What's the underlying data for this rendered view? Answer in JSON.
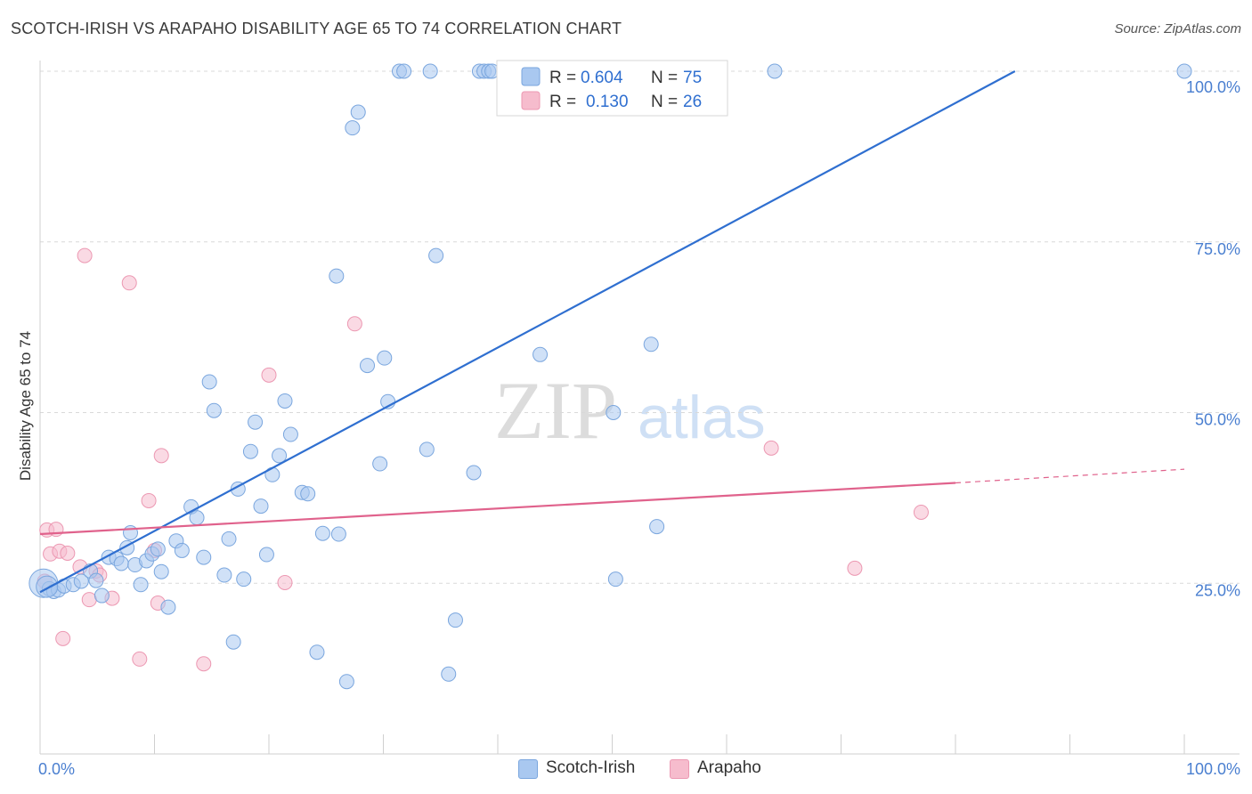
{
  "header": {
    "title": "SCOTCH-IRISH VS ARAPAHO DISABILITY AGE 65 TO 74 CORRELATION CHART",
    "source": "Source: ZipAtlas.com"
  },
  "watermark": {
    "zip": "ZIP",
    "atlas": "atlas"
  },
  "legend_top": [
    {
      "r_label": "R =",
      "r_value": "0.604",
      "n_label": "N =",
      "n_value": "75"
    },
    {
      "r_label": "R =",
      "r_value": "0.130",
      "n_label": "N =",
      "n_value": "26"
    }
  ],
  "legend_bottom": [
    {
      "label": "Scotch-Irish"
    },
    {
      "label": "Arapaho"
    }
  ],
  "colors": {
    "blue_fill": "#a9c8f0",
    "blue_stroke": "#7aa6de",
    "blue_line": "#2f6fd0",
    "pink_fill": "#f6bccd",
    "pink_stroke": "#ec98b2",
    "pink_line": "#e0628c",
    "axis_text": "#4a7fd0",
    "grid": "#d9d9d9"
  },
  "chart_data": {
    "type": "scatter",
    "title": "SCOTCH-IRISH VS ARAPAHO DISABILITY AGE 65 TO 74 CORRELATION CHART",
    "xlabel": "",
    "ylabel": "Disability Age 65 to 74",
    "xlim": [
      0,
      100
    ],
    "ylim": [
      0,
      100
    ],
    "x_tick_labels": [
      "0.0%",
      "100.0%"
    ],
    "y_tick_labels": [
      "25.0%",
      "50.0%",
      "75.0%",
      "100.0%"
    ],
    "y_ticks": [
      25,
      50,
      75,
      100
    ],
    "series": [
      {
        "name": "Scotch-Irish",
        "R": 0.604,
        "N": 75,
        "trend": {
          "x": [
            0,
            85.2
          ],
          "y": [
            23.7,
            100
          ]
        },
        "points": [
          [
            0.3,
            25.0
          ],
          [
            0.8,
            24.2
          ],
          [
            1.2,
            23.8
          ],
          [
            1.6,
            24.0
          ],
          [
            2.1,
            24.6
          ],
          [
            2.9,
            24.8
          ],
          [
            3.6,
            25.3
          ],
          [
            4.4,
            26.8
          ],
          [
            4.9,
            25.4
          ],
          [
            5.4,
            23.2
          ],
          [
            6.0,
            28.8
          ],
          [
            6.7,
            28.6
          ],
          [
            7.1,
            27.9
          ],
          [
            7.6,
            30.2
          ],
          [
            7.9,
            32.4
          ],
          [
            8.3,
            27.7
          ],
          [
            8.8,
            24.8
          ],
          [
            9.3,
            28.3
          ],
          [
            9.8,
            29.3
          ],
          [
            10.3,
            30.0
          ],
          [
            10.6,
            26.7
          ],
          [
            11.2,
            21.5
          ],
          [
            11.9,
            31.2
          ],
          [
            12.4,
            29.8
          ],
          [
            13.2,
            36.2
          ],
          [
            13.7,
            34.6
          ],
          [
            14.3,
            28.8
          ],
          [
            14.8,
            54.5
          ],
          [
            15.2,
            50.3
          ],
          [
            16.1,
            26.2
          ],
          [
            16.5,
            31.5
          ],
          [
            16.9,
            16.4
          ],
          [
            17.3,
            38.8
          ],
          [
            17.8,
            25.6
          ],
          [
            18.4,
            44.3
          ],
          [
            18.8,
            48.6
          ],
          [
            19.3,
            36.3
          ],
          [
            19.8,
            29.2
          ],
          [
            20.3,
            40.9
          ],
          [
            20.9,
            43.7
          ],
          [
            21.4,
            51.7
          ],
          [
            21.9,
            46.8
          ],
          [
            22.9,
            38.3
          ],
          [
            23.4,
            38.1
          ],
          [
            24.2,
            14.9
          ],
          [
            24.7,
            32.3
          ],
          [
            25.9,
            70.0
          ],
          [
            26.1,
            32.2
          ],
          [
            26.8,
            10.6
          ],
          [
            27.3,
            91.7
          ],
          [
            27.8,
            94.0
          ],
          [
            28.6,
            56.9
          ],
          [
            29.7,
            42.5
          ],
          [
            30.1,
            58.0
          ],
          [
            30.4,
            51.6
          ],
          [
            31.4,
            100.0
          ],
          [
            31.8,
            100.0
          ],
          [
            33.8,
            44.6
          ],
          [
            34.1,
            100.0
          ],
          [
            34.6,
            73.0
          ],
          [
            35.7,
            11.7
          ],
          [
            36.3,
            19.6
          ],
          [
            37.9,
            41.2
          ],
          [
            38.4,
            100.0
          ],
          [
            38.8,
            100.0
          ],
          [
            39.2,
            100.0
          ],
          [
            39.5,
            100.0
          ],
          [
            43.7,
            58.5
          ],
          [
            50.1,
            50.0
          ],
          [
            50.3,
            25.6
          ],
          [
            53.4,
            60.0
          ],
          [
            53.9,
            33.3
          ],
          [
            64.2,
            100.0
          ],
          [
            100.0,
            100.0
          ],
          [
            0.6,
            24.5
          ]
        ]
      },
      {
        "name": "Arapaho",
        "R": 0.13,
        "N": 26,
        "trend": {
          "x": [
            0,
            80
          ],
          "y": [
            32.2,
            39.7
          ]
        },
        "trend_dashed": {
          "x": [
            80,
            100
          ],
          "y": [
            39.7,
            41.7
          ]
        },
        "points": [
          [
            0.4,
            25.3
          ],
          [
            0.6,
            32.8
          ],
          [
            0.9,
            29.3
          ],
          [
            1.4,
            32.9
          ],
          [
            1.7,
            29.7
          ],
          [
            2.0,
            16.9
          ],
          [
            2.4,
            29.4
          ],
          [
            3.5,
            27.4
          ],
          [
            3.9,
            73.0
          ],
          [
            4.3,
            22.6
          ],
          [
            4.9,
            26.8
          ],
          [
            5.2,
            26.2
          ],
          [
            6.3,
            22.8
          ],
          [
            7.8,
            69.0
          ],
          [
            8.7,
            13.9
          ],
          [
            9.5,
            37.1
          ],
          [
            10.0,
            29.8
          ],
          [
            10.3,
            22.1
          ],
          [
            10.6,
            43.7
          ],
          [
            14.3,
            13.2
          ],
          [
            20.0,
            55.5
          ],
          [
            21.4,
            25.1
          ],
          [
            27.5,
            63.0
          ],
          [
            63.9,
            44.8
          ],
          [
            71.2,
            27.2
          ],
          [
            77.0,
            35.4
          ]
        ]
      }
    ]
  }
}
